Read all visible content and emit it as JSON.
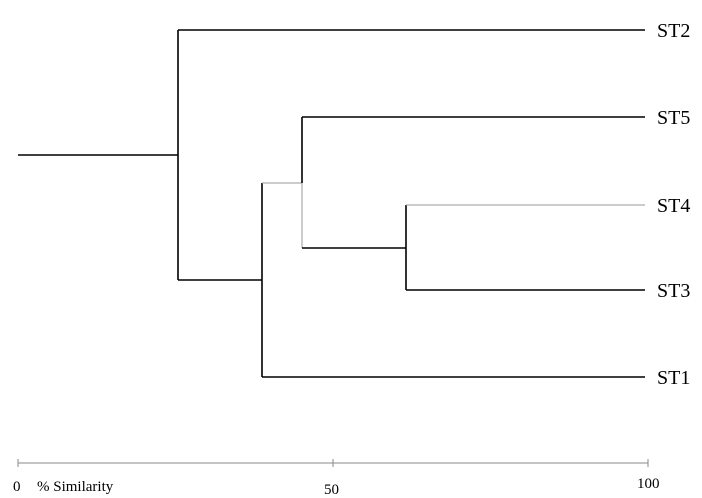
{
  "diagram": {
    "type": "dendrogram",
    "axis": {
      "title": "% Similarity",
      "ticks": [
        "0",
        "50",
        "100"
      ],
      "range": [
        0,
        100
      ]
    },
    "leaves": [
      {
        "id": "ST2",
        "label": "ST2"
      },
      {
        "id": "ST5",
        "label": "ST5"
      },
      {
        "id": "ST4",
        "label": "ST4"
      },
      {
        "id": "ST3",
        "label": "ST3"
      },
      {
        "id": "ST1",
        "label": "ST1"
      }
    ],
    "merges": [
      {
        "members": [
          "ST4",
          "ST3"
        ],
        "similarity": 61
      },
      {
        "members": [
          "ST5",
          "ST4-ST3"
        ],
        "similarity": 45
      },
      {
        "members": [
          "ST1",
          "ST5-ST4-ST3"
        ],
        "similarity": 38
      },
      {
        "members": [
          "ST2",
          "ST1-ST5-ST4-ST3"
        ],
        "similarity": 25
      }
    ],
    "colors": {
      "branch": "#000000",
      "thin_branch": "#9a9a9a",
      "axis": "#8a8a8a"
    }
  }
}
